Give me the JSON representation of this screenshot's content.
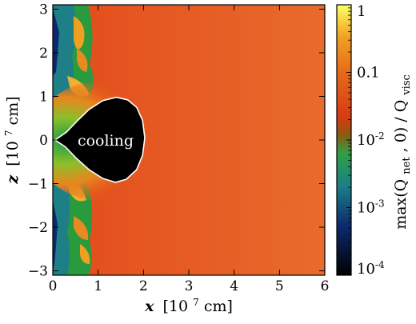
{
  "chart_data": {
    "type": "heatmap",
    "xlabel_var": "x",
    "xlabel_unit": "[10",
    "xlabel_exp": "7",
    "xlabel_unit_tail": " cm]",
    "ylabel_var": "z",
    "ylabel_unit": "[10",
    "ylabel_exp": "7",
    "ylabel_unit_tail": " cm]",
    "xlim": [
      0,
      6
    ],
    "ylim": [
      -3.1,
      3.1
    ],
    "x_ticks": [
      0,
      1,
      2,
      3,
      4,
      5,
      6
    ],
    "x_tick_labels": [
      "0",
      "1",
      "2",
      "3",
      "4",
      "5",
      "6"
    ],
    "y_ticks": [
      3,
      2,
      1,
      0,
      -1,
      -2,
      -3
    ],
    "y_tick_labels": [
      "3",
      "2",
      "1",
      "0",
      "−1",
      "−2",
      "−3"
    ],
    "annotation": "cooling",
    "cooling_region_boundary": [
      [
        0.05,
        0.0
      ],
      [
        0.3,
        0.18
      ],
      [
        0.55,
        0.45
      ],
      [
        0.8,
        0.7
      ],
      [
        1.1,
        0.9
      ],
      [
        1.4,
        0.98
      ],
      [
        1.65,
        0.92
      ],
      [
        1.85,
        0.75
      ],
      [
        1.98,
        0.45
      ],
      [
        2.03,
        0.05
      ],
      [
        1.98,
        -0.35
      ],
      [
        1.85,
        -0.68
      ],
      [
        1.62,
        -0.9
      ],
      [
        1.38,
        -0.97
      ],
      [
        1.1,
        -0.88
      ],
      [
        0.8,
        -0.68
      ],
      [
        0.52,
        -0.42
      ],
      [
        0.28,
        -0.16
      ]
    ],
    "colorbar": {
      "label_text": "max(Q",
      "label_sub_net": "net",
      "label_mid": ", 0) / Q",
      "label_sub_visc": "visc",
      "scale": "log",
      "range": [
        0.0001,
        1
      ],
      "tick_labels": [
        {
          "value": 1,
          "base": "1",
          "exp": ""
        },
        {
          "value": 0.1,
          "base": "0.1",
          "exp": ""
        },
        {
          "value": 0.01,
          "base": "10",
          "exp": "-2"
        },
        {
          "value": 0.001,
          "base": "10",
          "exp": "-3"
        },
        {
          "value": 0.0001,
          "base": "10",
          "exp": "-4"
        }
      ],
      "colors": [
        "#000000",
        "#0b2a6e",
        "#1c7f86",
        "#2ea045",
        "#d63a12",
        "#f0a020",
        "#ffff66"
      ]
    }
  }
}
